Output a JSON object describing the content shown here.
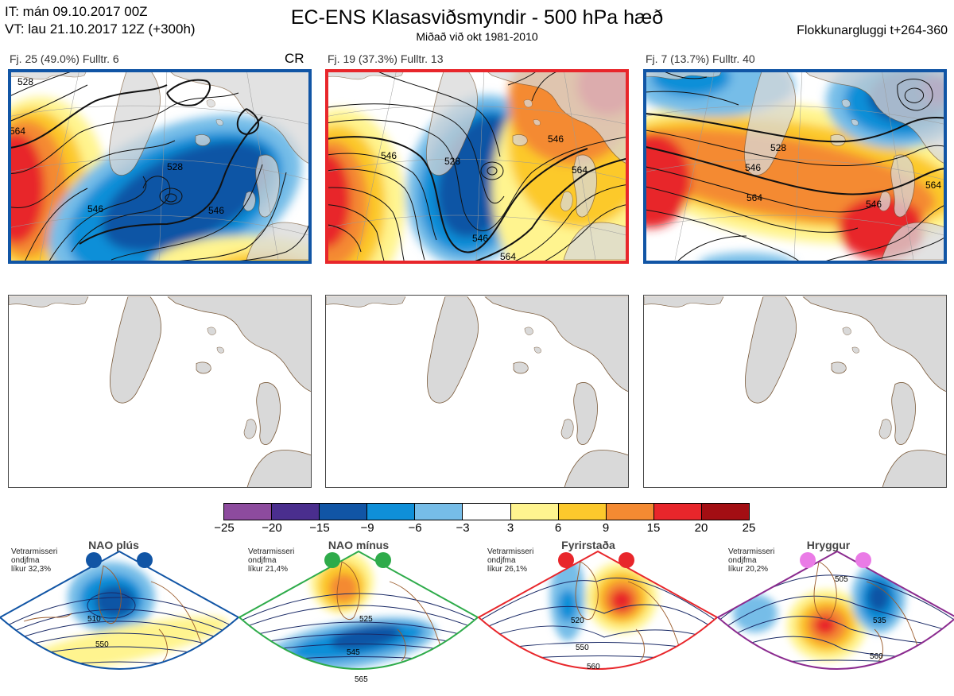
{
  "header": {
    "it_line": "IT: mán 09.10.2017 00Z",
    "vt_line": "VT: lau 21.10.2017 12Z  (+300h)",
    "title": "EC-ENS Klasasviðsmyndir - 500 hPa hæð",
    "subtitle": "Miðað við okt 1981-2010",
    "window": "Flokkunargluggi t+264-360"
  },
  "clusters": [
    {
      "label": "Fj. 25 (49.0%)   Fulltr. 6",
      "regime_code": "CR",
      "frame_color": "#1155a5",
      "contour_labels": [
        "528",
        "546",
        "564",
        "546",
        "528"
      ]
    },
    {
      "label": "Fj. 19 (37.3%)   Fulltr. 13",
      "regime_code": "",
      "frame_color": "#e8262b",
      "contour_labels": [
        "546",
        "528",
        "546",
        "564",
        "546",
        "564"
      ]
    },
    {
      "label": "Fj. 7 (13.7%)   Fulltr. 40",
      "regime_code": "",
      "frame_color": "#1155a5",
      "contour_labels": [
        "528",
        "546",
        "564",
        "546",
        "564"
      ]
    }
  ],
  "colorbar": {
    "ticks": [
      "−25",
      "−20",
      "−15",
      "−9",
      "−6",
      "−3",
      "3",
      "6",
      "9",
      "15",
      "20",
      "25"
    ],
    "colors": [
      "#8d4b9e",
      "#4a2e8e",
      "#1155a5",
      "#0f8fd8",
      "#76bde8",
      "#ffffff",
      "#fff48f",
      "#fcc92c",
      "#f48a32",
      "#e8262b",
      "#a30e13"
    ]
  },
  "regimes": [
    {
      "name": "NAO plús",
      "note": [
        "Vetrarmisseri",
        "ondjfma",
        "líkur 32,3%"
      ],
      "color": "#1155a5",
      "dot": "#1155a5",
      "contours": [
        "510",
        "550"
      ]
    },
    {
      "name": "NAO mínus",
      "note": [
        "Vetrarmisseri",
        "ondjfma",
        "líkur 21,4%"
      ],
      "color": "#2eab4a",
      "dot": "#2eab4a",
      "contours": [
        "525",
        "545",
        "565"
      ]
    },
    {
      "name": "Fyrirstaða",
      "note": [
        "Vetrarmisseri",
        "ondjfma",
        "líkur 26,1%"
      ],
      "color": "#e8262b",
      "dot": "#e8262b",
      "contours": [
        "520",
        "550",
        "560"
      ]
    },
    {
      "name": "Hryggur",
      "note": [
        "Vetrarmisseri",
        "ondjfma",
        "líkur 20,2%"
      ],
      "color": "#8b2b8f",
      "dot": "#ea7be6",
      "contours": [
        "505",
        "535",
        "560"
      ]
    }
  ]
}
